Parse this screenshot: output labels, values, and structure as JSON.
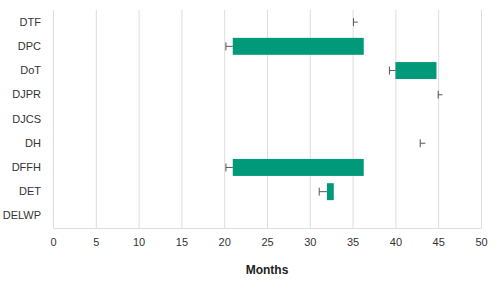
{
  "chart_data": {
    "type": "bar",
    "orientation": "horizontal",
    "categories": [
      "DTF",
      "DPC",
      "DoT",
      "DJPR",
      "DJCS",
      "DH",
      "DFFH",
      "DET",
      "DELWP"
    ],
    "starts": [
      35.6,
      21,
      40,
      45.5,
      null,
      43.5,
      21,
      32,
      null
    ],
    "values": [
      35.6,
      36.3,
      44.8,
      45.5,
      null,
      43.5,
      36.3,
      32.8,
      null
    ],
    "errors": [
      0.5,
      0.8,
      0.7,
      0.5,
      null,
      0.6,
      0.8,
      0.9,
      null
    ],
    "color": "#00997a",
    "x_label": "Months",
    "xlim": [
      0,
      50
    ],
    "xticks": [
      0,
      5,
      10,
      15,
      20,
      25,
      30,
      35,
      40,
      45,
      50
    ],
    "grid": true
  }
}
